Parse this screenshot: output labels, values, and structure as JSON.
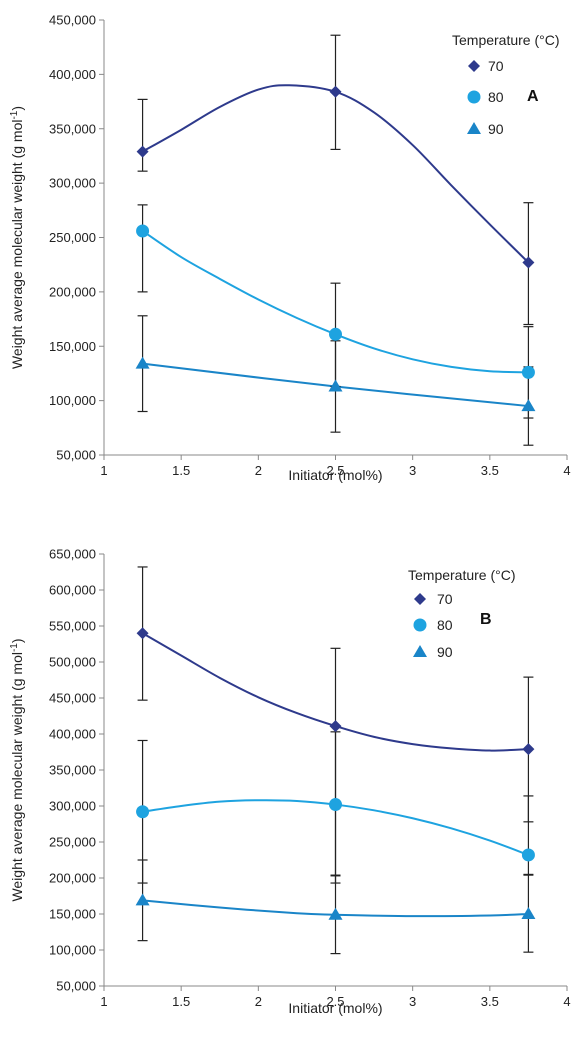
{
  "chart_data": [
    {
      "type": "scatter",
      "panel_label": "A",
      "xlabel": "Initiator (mol%)",
      "ylabel_main": "Weight average molecular weight (g mol",
      "ylabel_sup": "-1",
      "ylabel_end": ")",
      "xlim": [
        1,
        4
      ],
      "ylim": [
        50000,
        450000
      ],
      "x_ticks": [
        1,
        1.5,
        2,
        2.5,
        3,
        3.5,
        4
      ],
      "x_tick_labels": [
        "1",
        "1.5",
        "2",
        "2.5",
        "3",
        "3.5",
        "4"
      ],
      "y_ticks": [
        50000,
        100000,
        150000,
        200000,
        250000,
        300000,
        350000,
        400000,
        450000
      ],
      "y_tick_labels": [
        "50,000",
        "100,000",
        "150,000",
        "200,000",
        "250,000",
        "300,000",
        "350,000",
        "400,000",
        "450,000"
      ],
      "legend_title": "Temperature (°C)",
      "legend_position": "top-right",
      "x": [
        1.25,
        2.5,
        3.75
      ],
      "series": [
        {
          "name": "70",
          "marker": "diamond",
          "color": "#2e3a8c",
          "values": [
            329000,
            384000,
            227000
          ],
          "error_low": [
            311000,
            331000,
            170000
          ],
          "error_high": [
            377000,
            436000,
            282000
          ],
          "curve": [
            [
              1.25,
              329000
            ],
            [
              1.5,
              349000
            ],
            [
              1.75,
              370000
            ],
            [
              2,
              386000
            ],
            [
              2.2,
              390000
            ],
            [
              2.5,
              384000
            ],
            [
              2.75,
              365000
            ],
            [
              3,
              335000
            ],
            [
              3.25,
              298000
            ],
            [
              3.5,
              262000
            ],
            [
              3.75,
              227000
            ]
          ]
        },
        {
          "name": "80",
          "marker": "circle",
          "color": "#1ea3e0",
          "values": [
            256000,
            161000,
            126000
          ],
          "error_low": [
            200000,
            113000,
            84000
          ],
          "error_high": [
            280000,
            208000,
            168000
          ],
          "curve": [
            [
              1.25,
              256000
            ],
            [
              1.5,
              232000
            ],
            [
              1.75,
              212000
            ],
            [
              2,
              193000
            ],
            [
              2.25,
              176000
            ],
            [
              2.5,
              161000
            ],
            [
              2.75,
              148000
            ],
            [
              3,
              138000
            ],
            [
              3.25,
              131000
            ],
            [
              3.5,
              127000
            ],
            [
              3.75,
              126000
            ]
          ]
        },
        {
          "name": "90",
          "marker": "triangle",
          "color": "#1a85c8",
          "values": [
            134000,
            113000,
            95000
          ],
          "error_low": [
            90000,
            71000,
            59000
          ],
          "error_high": [
            178000,
            155000,
            131000
          ],
          "curve": [
            [
              1.25,
              134000
            ],
            [
              2.5,
              113000
            ],
            [
              3.75,
              95000
            ]
          ]
        }
      ]
    },
    {
      "type": "scatter",
      "panel_label": "B",
      "xlabel": "Initiator (mol%)",
      "ylabel_main": "Weight average molecular weight (g mol",
      "ylabel_sup": "-1",
      "ylabel_end": ")",
      "xlim": [
        1,
        4
      ],
      "ylim": [
        50000,
        650000
      ],
      "x_ticks": [
        1,
        1.5,
        2,
        2.5,
        3,
        3.5,
        4
      ],
      "x_tick_labels": [
        "1",
        "1.5",
        "2",
        "2.5",
        "3",
        "3.5",
        "4"
      ],
      "y_ticks": [
        50000,
        100000,
        150000,
        200000,
        250000,
        300000,
        350000,
        400000,
        450000,
        500000,
        550000,
        600000,
        650000
      ],
      "y_tick_labels": [
        "50,000",
        "100,000",
        "150,000",
        "200,000",
        "250,000",
        "300,000",
        "350,000",
        "400,000",
        "450,000",
        "500,000",
        "550,000",
        "600,000",
        "650,000"
      ],
      "legend_title": "Temperature (°C)",
      "legend_position": "top-right",
      "x": [
        1.25,
        2.5,
        3.75
      ],
      "series": [
        {
          "name": "70",
          "marker": "diamond",
          "color": "#2e3a8c",
          "values": [
            540000,
            411000,
            379000
          ],
          "error_low": [
            447000,
            203000,
            278000
          ],
          "error_high": [
            632000,
            519000,
            479000
          ],
          "curve": [
            [
              1.25,
              540000
            ],
            [
              1.5,
              509000
            ],
            [
              1.75,
              478000
            ],
            [
              2,
              451000
            ],
            [
              2.25,
              429000
            ],
            [
              2.5,
              411000
            ],
            [
              2.75,
              396000
            ],
            [
              3,
              386000
            ],
            [
              3.25,
              380000
            ],
            [
              3.5,
              377000
            ],
            [
              3.75,
              379000
            ]
          ]
        },
        {
          "name": "80",
          "marker": "circle",
          "color": "#1ea3e0",
          "values": [
            292000,
            302000,
            232000
          ],
          "error_low": [
            193000,
            193000,
            204000
          ],
          "error_high": [
            391000,
            403000,
            314000
          ],
          "curve": [
            [
              1.25,
              292000
            ],
            [
              1.5,
              300000
            ],
            [
              1.75,
              306000
            ],
            [
              2,
              308000
            ],
            [
              2.25,
              307000
            ],
            [
              2.5,
              302000
            ],
            [
              2.75,
              294000
            ],
            [
              3,
              283000
            ],
            [
              3.25,
              269000
            ],
            [
              3.5,
              252000
            ],
            [
              3.75,
              232000
            ]
          ]
        },
        {
          "name": "90",
          "marker": "triangle",
          "color": "#1a85c8",
          "values": [
            169000,
            149000,
            150000
          ],
          "error_low": [
            113000,
            95000,
            97000
          ],
          "error_high": [
            225000,
            204000,
            205000
          ],
          "curve": [
            [
              1.25,
              169000
            ],
            [
              1.75,
              159000
            ],
            [
              2.25,
              151000
            ],
            [
              2.5,
              149000
            ],
            [
              3,
              147000
            ],
            [
              3.5,
              148000
            ],
            [
              3.75,
              150000
            ]
          ]
        }
      ]
    }
  ]
}
